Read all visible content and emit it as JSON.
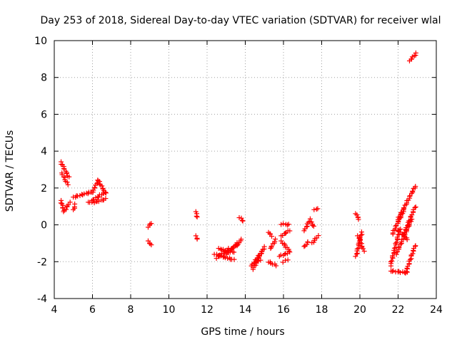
{
  "chart_data": {
    "type": "scatter",
    "title": "Day 253 of 2018, Sidereal Day-to-day VTEC variation (SDTVAR) for receiver wlal",
    "xlabel": "GPS time / hours",
    "ylabel": "SDTVAR / TECUs",
    "xlim": [
      4,
      24
    ],
    "ylim": [
      -4,
      10
    ],
    "xticks": [
      4,
      6,
      8,
      10,
      12,
      14,
      16,
      18,
      20,
      22,
      24
    ],
    "yticks": [
      -4,
      -2,
      0,
      2,
      4,
      6,
      8,
      10
    ],
    "grid": true,
    "marker": "+",
    "color": "#ff0000",
    "segments": [
      {
        "x": [
          4.35,
          4.75
        ],
        "y": [
          3.4,
          2.6
        ]
      },
      {
        "x": [
          4.4,
          4.7
        ],
        "y": [
          2.8,
          2.2
        ]
      },
      {
        "x": [
          4.35,
          4.5
        ],
        "y": [
          1.3,
          0.8
        ]
      },
      {
        "x": [
          4.5,
          4.8
        ],
        "y": [
          0.7,
          1.2
        ]
      },
      {
        "x": [
          5.0,
          5.1
        ],
        "y": [
          0.8,
          1.1
        ]
      },
      {
        "x": [
          5.0,
          6.0
        ],
        "y": [
          1.5,
          1.8
        ]
      },
      {
        "x": [
          6.0,
          6.3
        ],
        "y": [
          1.8,
          2.4
        ]
      },
      {
        "x": [
          6.3,
          6.7
        ],
        "y": [
          2.4,
          1.7
        ]
      },
      {
        "x": [
          5.8,
          6.7
        ],
        "y": [
          1.2,
          1.8
        ]
      },
      {
        "x": [
          6.0,
          6.7
        ],
        "y": [
          1.2,
          1.4
        ]
      },
      {
        "x": [
          8.9,
          9.1
        ],
        "y": [
          -0.1,
          0.1
        ]
      },
      {
        "x": [
          8.9,
          9.1
        ],
        "y": [
          -0.9,
          -1.1
        ]
      },
      {
        "x": [
          11.4,
          11.5
        ],
        "y": [
          0.7,
          0.4
        ]
      },
      {
        "x": [
          11.4,
          11.5
        ],
        "y": [
          -0.6,
          -0.8
        ]
      },
      {
        "x": [
          12.4,
          13.4
        ],
        "y": [
          -1.6,
          -1.9
        ]
      },
      {
        "x": [
          12.6,
          13.4
        ],
        "y": [
          -1.3,
          -1.5
        ]
      },
      {
        "x": [
          12.5,
          13.1
        ],
        "y": [
          -1.8,
          -1.3
        ]
      },
      {
        "x": [
          13.0,
          13.8
        ],
        "y": [
          -1.6,
          -0.8
        ]
      },
      {
        "x": [
          13.0,
          13.7
        ],
        "y": [
          -1.5,
          -1.0
        ]
      },
      {
        "x": [
          13.7,
          13.9
        ],
        "y": [
          0.4,
          0.2
        ]
      },
      {
        "x": [
          14.3,
          14.8
        ],
        "y": [
          -2.2,
          -1.9
        ]
      },
      {
        "x": [
          14.4,
          15.0
        ],
        "y": [
          -2.4,
          -1.2
        ]
      },
      {
        "x": [
          14.5,
          14.9
        ],
        "y": [
          -2.0,
          -1.4
        ]
      },
      {
        "x": [
          15.2,
          15.4
        ],
        "y": [
          -0.4,
          -0.6
        ]
      },
      {
        "x": [
          15.3,
          15.6
        ],
        "y": [
          -1.3,
          -0.8
        ]
      },
      {
        "x": [
          15.2,
          15.6
        ],
        "y": [
          -2.0,
          -2.2
        ]
      },
      {
        "x": [
          15.8,
          16.3
        ],
        "y": [
          -1.7,
          -1.5
        ]
      },
      {
        "x": [
          15.9,
          16.3
        ],
        "y": [
          -0.9,
          -1.4
        ]
      },
      {
        "x": [
          15.9,
          16.3
        ],
        "y": [
          -0.6,
          -0.3
        ]
      },
      {
        "x": [
          15.9,
          16.3
        ],
        "y": [
          0.05,
          0.0
        ]
      },
      {
        "x": [
          16.0,
          16.2
        ],
        "y": [
          -2.0,
          -1.9
        ]
      },
      {
        "x": [
          17.1,
          17.3
        ],
        "y": [
          -1.2,
          -0.9
        ]
      },
      {
        "x": [
          17.1,
          17.4
        ],
        "y": [
          -0.3,
          0.3
        ]
      },
      {
        "x": [
          17.4,
          17.6
        ],
        "y": [
          0.2,
          -0.1
        ]
      },
      {
        "x": [
          17.5,
          17.8
        ],
        "y": [
          -1.0,
          -0.6
        ]
      },
      {
        "x": [
          17.6,
          17.8
        ],
        "y": [
          0.8,
          0.9
        ]
      },
      {
        "x": [
          19.8,
          19.95
        ],
        "y": [
          0.6,
          0.3
        ]
      },
      {
        "x": [
          19.8,
          20.1
        ],
        "y": [
          -1.7,
          -0.4
        ]
      },
      {
        "x": [
          19.9,
          20.2
        ],
        "y": [
          -0.6,
          -1.4
        ]
      },
      {
        "x": [
          21.6,
          22.1
        ],
        "y": [
          -2.2,
          -0.2
        ]
      },
      {
        "x": [
          21.7,
          22.3
        ],
        "y": [
          -0.5,
          0.8
        ]
      },
      {
        "x": [
          21.6,
          22.5
        ],
        "y": [
          -2.5,
          -2.6
        ]
      },
      {
        "x": [
          22.0,
          22.9
        ],
        "y": [
          0.3,
          2.1
        ]
      },
      {
        "x": [
          21.9,
          22.7
        ],
        "y": [
          -1.6,
          0.3
        ]
      },
      {
        "x": [
          22.3,
          22.9
        ],
        "y": [
          -0.5,
          1.0
        ]
      },
      {
        "x": [
          22.4,
          22.9
        ],
        "y": [
          -2.6,
          -1.1
        ]
      },
      {
        "x": [
          22.0,
          22.5
        ],
        "y": [
          -0.3,
          -0.8
        ]
      },
      {
        "x": [
          22.6,
          22.95
        ],
        "y": [
          8.9,
          9.3
        ]
      }
    ]
  }
}
